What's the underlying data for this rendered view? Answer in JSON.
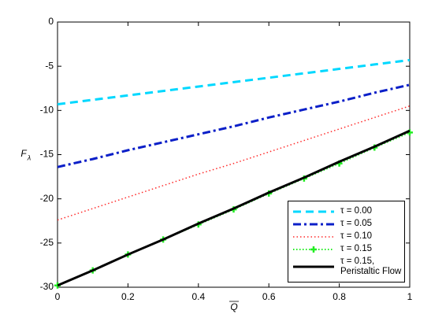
{
  "chart_data": {
    "type": "line",
    "x_label": "Q",
    "y_label": "F",
    "y_label_sub": "λ",
    "x": [
      0,
      0.1,
      0.2,
      0.3,
      0.4,
      0.5,
      0.6,
      0.7,
      0.8,
      0.9,
      1
    ],
    "series": [
      {
        "name": "τ = 0.00",
        "color": "#00d8ff",
        "dash": "10,6",
        "width": 3,
        "values": [
          -9.3,
          -8.8,
          -8.3,
          -7.8,
          -7.3,
          -6.8,
          -6.3,
          -5.8,
          -5.3,
          -4.8,
          -4.3
        ]
      },
      {
        "name": "τ = 0.05",
        "color": "#0b1fc8",
        "dash": "10,4,3,4",
        "width": 3,
        "values": [
          -16.4,
          -15.5,
          -14.5,
          -13.6,
          -12.7,
          -11.8,
          -10.8,
          -9.9,
          -9.0,
          -8.0,
          -7.1
        ]
      },
      {
        "name": "τ = 0.10",
        "color": "#ff2a2a",
        "dash": "1.5,3",
        "width": 1.5,
        "values": [
          -22.4,
          -21.1,
          -19.8,
          -18.5,
          -17.2,
          -16.0,
          -14.7,
          -13.4,
          -12.1,
          -10.8,
          -9.5
        ]
      },
      {
        "name": "τ = 0.15",
        "color": "#22ee22",
        "dash": "1.5,2.5",
        "width": 2,
        "marker": "+",
        "values": [
          -29.8,
          -28.1,
          -26.3,
          -24.6,
          -22.9,
          -21.2,
          -19.4,
          -17.7,
          -16.0,
          -14.2,
          -12.5
        ]
      },
      {
        "name": "τ = 0.15,\nPeristaltic Flow",
        "color": "#000000",
        "dash": "none",
        "width": 3,
        "values": [
          -29.8,
          -28.1,
          -26.3,
          -24.6,
          -22.8,
          -21.1,
          -19.3,
          -17.6,
          -15.8,
          -14.1,
          -12.3
        ]
      }
    ],
    "xlim": [
      0,
      1
    ],
    "xticks": [
      0,
      0.2,
      0.4,
      0.6,
      0.8,
      1
    ],
    "ylim": [
      -30,
      0
    ],
    "yticks": [
      -30,
      -25,
      -20,
      -15,
      -10,
      -5,
      0
    ],
    "legend": "lower right"
  }
}
